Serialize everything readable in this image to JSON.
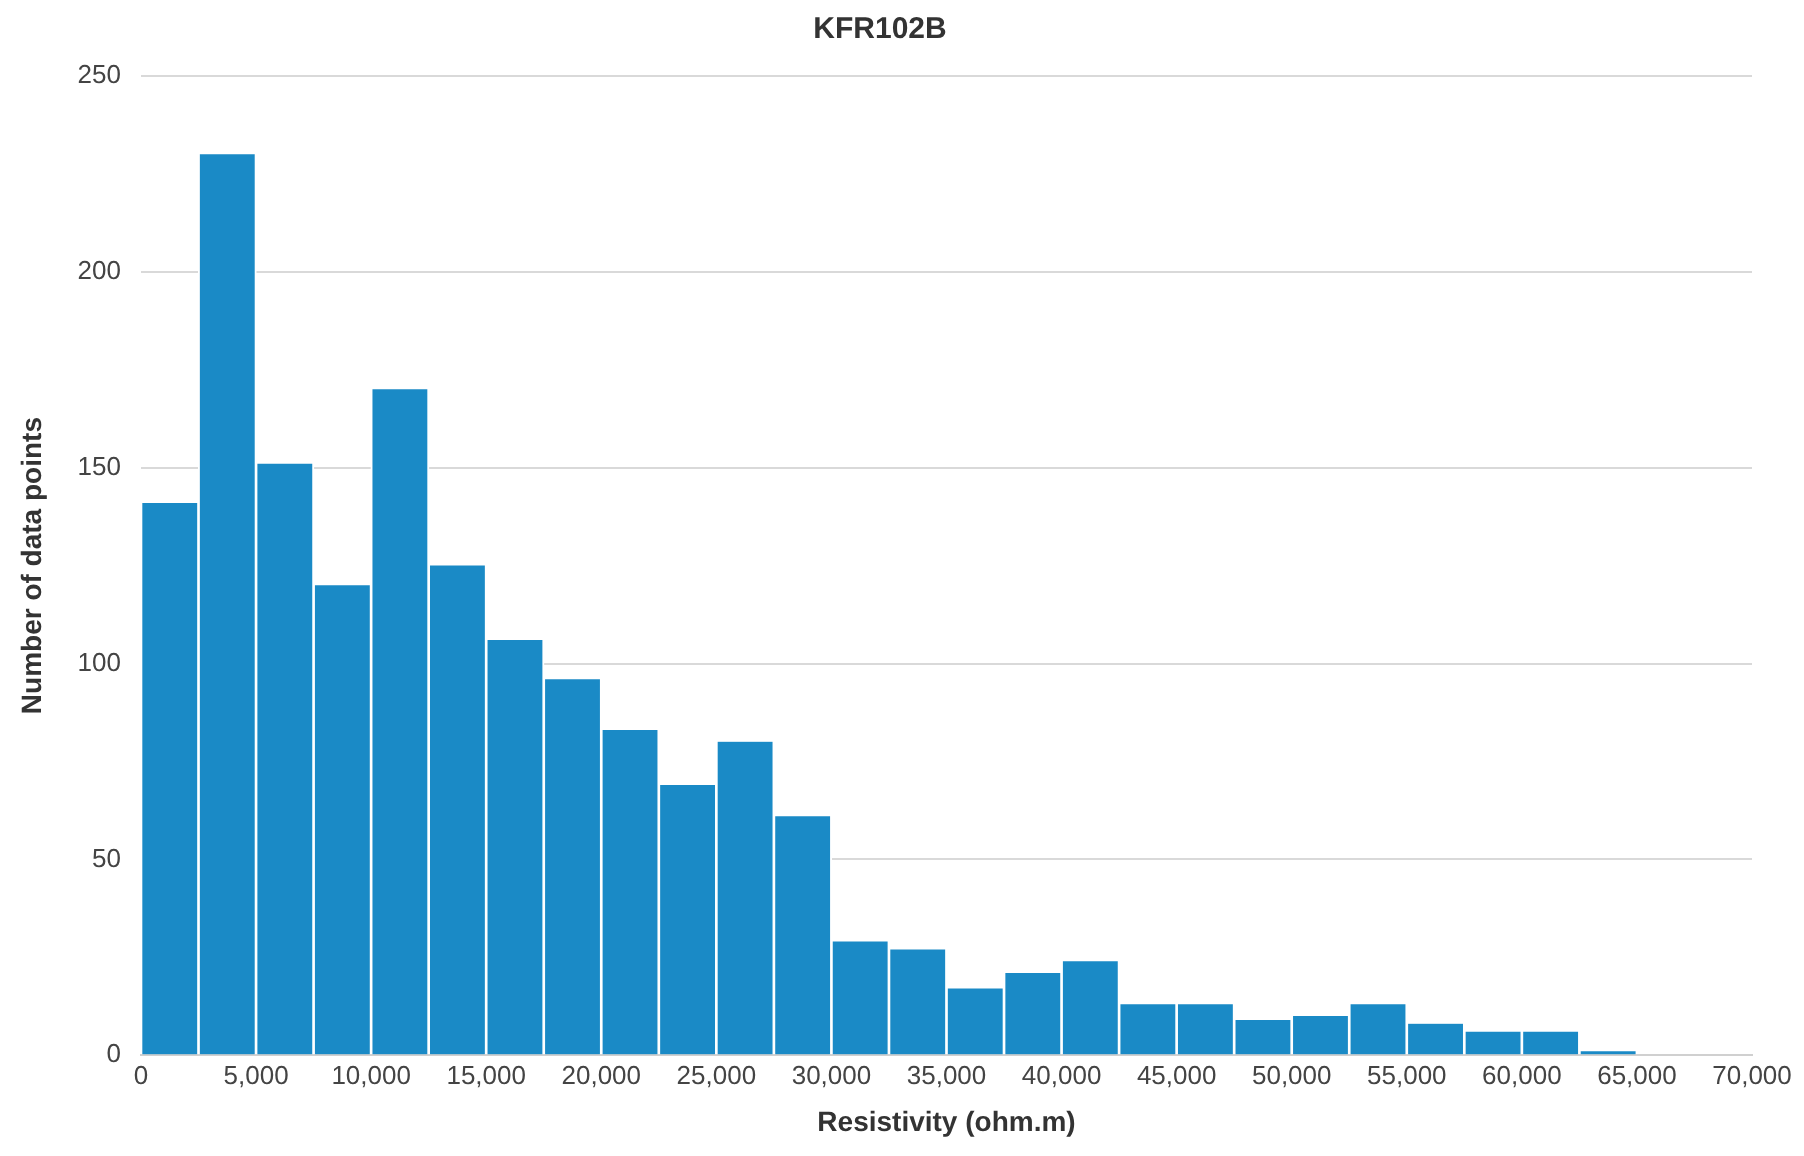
{
  "chart_data": {
    "type": "histogram",
    "title": "KFR102B",
    "xlabel": "Resistivity (ohm.m)",
    "ylabel": "Number of data points",
    "bins": [
      0,
      2500,
      5000,
      7500,
      10000,
      12500,
      15000,
      17500,
      20000,
      22500,
      25000,
      27500,
      30000,
      32500,
      35000,
      37500,
      40000,
      42500,
      45000,
      47500,
      50000,
      52500,
      55000,
      57500,
      60000,
      62500,
      65000,
      67500,
      70000
    ],
    "values": [
      141,
      230,
      151,
      120,
      170,
      125,
      106,
      96,
      83,
      69,
      80,
      61,
      29,
      27,
      17,
      21,
      24,
      13,
      13,
      9,
      10,
      13,
      8,
      6,
      6,
      1,
      0,
      0
    ],
    "color": "#1a8ac6",
    "xlim": [
      0,
      70000
    ],
    "xticks": [
      0,
      {
        "value": 5000,
        "label": "5,000"
      },
      {
        "value": 10000,
        "label": "10,000"
      },
      {
        "value": 15000,
        "label": "15,000"
      },
      {
        "value": 20000,
        "label": "20,000"
      },
      {
        "value": 25000,
        "label": "25,000"
      },
      {
        "value": 30000,
        "label": "30,000"
      },
      {
        "value": 35000,
        "label": "35,000"
      },
      {
        "value": 40000,
        "label": "40,000"
      },
      {
        "value": 45000,
        "label": "45,000"
      },
      {
        "value": 50000,
        "label": "50,000"
      },
      {
        "value": 55000,
        "label": "55,000"
      },
      {
        "value": 60000,
        "label": "60,000"
      },
      {
        "value": 65000,
        "label": "65,000"
      },
      {
        "value": 70000,
        "label": "70,000"
      }
    ],
    "ylim": [
      0,
      250
    ],
    "yticks": [
      0,
      50,
      100,
      150,
      200,
      250
    ],
    "grid": "y",
    "legend": false
  }
}
